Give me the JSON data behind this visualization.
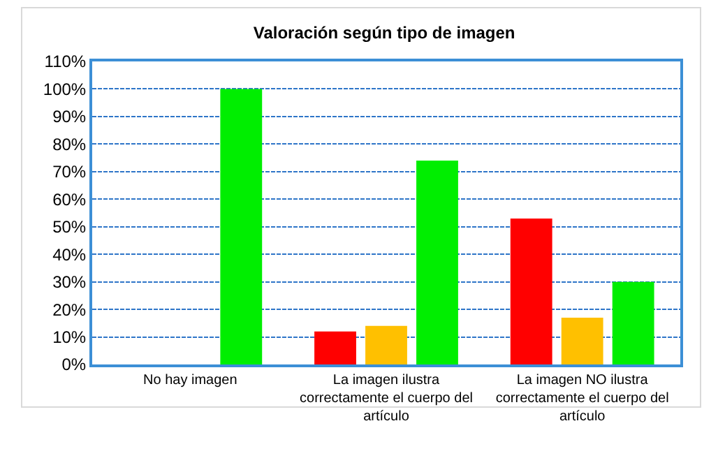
{
  "chart_data": {
    "type": "bar",
    "title": "Valoración según tipo de imagen",
    "categories": [
      "No hay imagen",
      "La imagen ilustra correctamente el cuerpo del artículo",
      "La imagen NO ilustra correctamente el cuerpo del artículo"
    ],
    "series": [
      {
        "color": "#ff0000",
        "values": [
          0,
          12,
          53
        ]
      },
      {
        "color": "#ffc000",
        "values": [
          0,
          14,
          17
        ]
      },
      {
        "color": "#00ee00",
        "values": [
          100,
          74,
          30
        ]
      }
    ],
    "ylim": [
      0,
      110
    ],
    "yticks": [
      {
        "value": 0,
        "label": "0%"
      },
      {
        "value": 10,
        "label": "10%"
      },
      {
        "value": 20,
        "label": "20%"
      },
      {
        "value": 30,
        "label": "30%"
      },
      {
        "value": 40,
        "label": "40%"
      },
      {
        "value": 50,
        "label": "50%"
      },
      {
        "value": 60,
        "label": "60%"
      },
      {
        "value": 70,
        "label": "70%"
      },
      {
        "value": 80,
        "label": "80%"
      },
      {
        "value": 90,
        "label": "90%"
      },
      {
        "value": 100,
        "label": "100%"
      },
      {
        "value": 110,
        "label": "110%"
      }
    ],
    "grid": "y"
  }
}
